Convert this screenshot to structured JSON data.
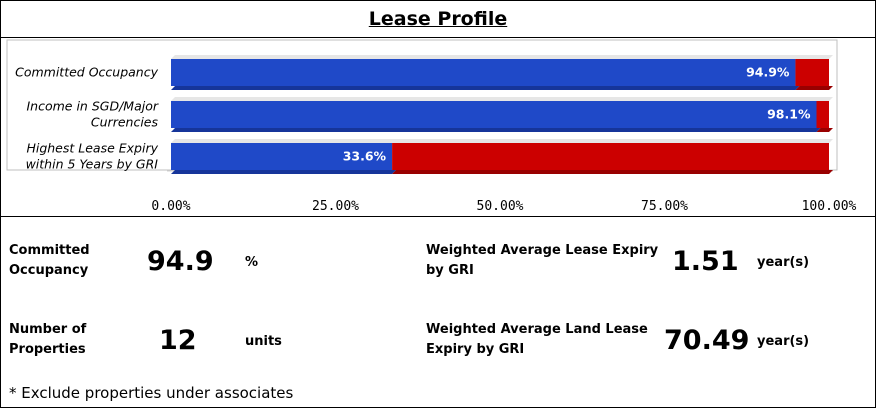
{
  "title": "Lease Profile",
  "chart_data": {
    "type": "bar",
    "orientation": "horizontal",
    "stacked": true,
    "categories": [
      [
        "Committed Occupancy"
      ],
      [
        "Income in SGD/Major",
        "Currencies"
      ],
      [
        "Highest Lease Expiry",
        "within 5 Years by GRI"
      ]
    ],
    "series": [
      {
        "values": [
          94.9,
          98.1,
          33.6
        ],
        "color": "#1f49c8"
      },
      {
        "values": [
          5.1,
          1.9,
          66.4
        ],
        "color": "#cc0000"
      }
    ],
    "data_labels": [
      "94.9%",
      "98.1%",
      "33.6%"
    ],
    "xlim": [
      0,
      100
    ],
    "x_ticks": [
      0,
      25,
      50,
      75,
      100
    ],
    "x_tick_labels": [
      "0.00%",
      "25.00%",
      "50.00%",
      "75.00%",
      "100.00%"
    ],
    "legend": "none",
    "grid": false
  },
  "stats": {
    "committed_occupancy": {
      "label_line1": "Committed",
      "label_line2": "Occupancy",
      "value": "94.9",
      "unit": "%"
    },
    "wale": {
      "label_line1": "Weighted Average Lease Expiry",
      "label_line2": "by GRI",
      "value": "1.51",
      "unit": "year(s)"
    },
    "properties": {
      "label_line1": "Number of",
      "label_line2": "Properties",
      "value": "12",
      "unit": "units"
    },
    "land_lease": {
      "label_line1": "Weighted Average Land Lease",
      "label_line2": "Expiry by GRI",
      "value": "70.49",
      "unit": "year(s)"
    }
  },
  "footnote": "* Exclude properties under associates"
}
